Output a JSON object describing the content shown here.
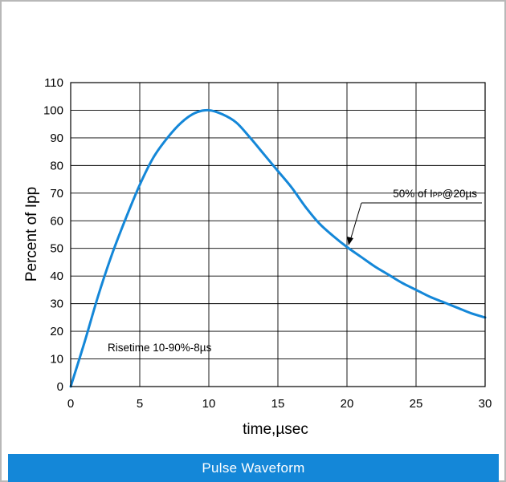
{
  "chart_data": {
    "type": "line",
    "title": "Pulse Waveform",
    "xlabel": "time,µsec",
    "ylabel": "Percent of Ipp",
    "xlim": [
      0,
      30
    ],
    "ylim": [
      0,
      110
    ],
    "x_ticks": [
      0,
      5,
      10,
      15,
      20,
      25,
      30
    ],
    "y_ticks": [
      0,
      10,
      20,
      30,
      40,
      50,
      60,
      70,
      80,
      90,
      100,
      110
    ],
    "grid": true,
    "line_color": "#1487d8",
    "series": [
      {
        "x": [
          0,
          1,
          2,
          3,
          4,
          5,
          6,
          7,
          8,
          9,
          10,
          11,
          12,
          13,
          14,
          15,
          16,
          17,
          18,
          19,
          20,
          21,
          22,
          23,
          24,
          25,
          26,
          27,
          28,
          29,
          30
        ],
        "values": [
          0,
          16,
          33,
          48,
          61,
          73,
          83,
          90,
          95.5,
          99,
          100,
          98.5,
          95.5,
          90,
          84,
          78,
          72,
          65,
          59,
          54.5,
          50.5,
          47,
          43.5,
          40.5,
          37.5,
          35,
          32.5,
          30.5,
          28.5,
          26.5,
          25
        ]
      }
    ],
    "annotations": [
      {
        "text": "Risetime 10-90%-8µs"
      },
      {
        "text": "50% of IPP@20µs",
        "x": 20,
        "y": 50
      }
    ]
  }
}
